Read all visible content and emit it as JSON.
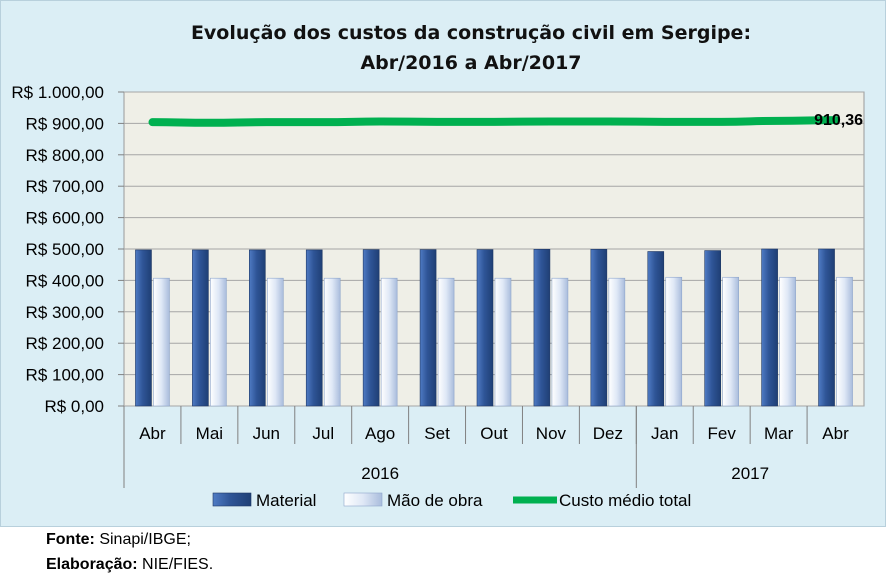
{
  "chart_data": {
    "type": "bar",
    "title_line1": "Evolução dos custos da construção civil em Sergipe:",
    "title_line2": "Abr/2016 a Abr/2017",
    "categories": [
      "Abr",
      "Mai",
      "Jun",
      "Jul",
      "Ago",
      "Set",
      "Out",
      "Nov",
      "Dez",
      "Jan",
      "Fev",
      "Mar",
      "Abr"
    ],
    "groups": [
      {
        "label": "2016",
        "count": 9
      },
      {
        "label": "2017",
        "count": 4
      }
    ],
    "y_ticks": [
      "R$ 0,00",
      "R$ 100,00",
      "R$ 200,00",
      "R$ 300,00",
      "R$ 400,00",
      "R$ 500,00",
      "R$ 600,00",
      "R$ 700,00",
      "R$ 800,00",
      "R$ 900,00",
      "R$ 1.000,00"
    ],
    "ylim": [
      0,
      1000
    ],
    "grid": true,
    "legend_position": "bottom",
    "series": [
      {
        "name": "Material",
        "type": "bar",
        "color": "#2f5597",
        "values": [
          497,
          497,
          497,
          497,
          498,
          498,
          498,
          499,
          499,
          492,
          495,
          500,
          500
        ]
      },
      {
        "name": "Mão de obra",
        "type": "bar",
        "color": "#c9d8ef",
        "values": [
          407,
          407,
          407,
          407,
          407,
          407,
          407,
          407,
          407,
          410,
          410,
          410,
          410
        ]
      },
      {
        "name": "Custo médio total",
        "type": "line",
        "color": "#00b050",
        "values": [
          904,
          902,
          904,
          904,
          906,
          905,
          905,
          906,
          906,
          905,
          905,
          908,
          910.36
        ]
      }
    ],
    "data_label": "910,36"
  },
  "source": {
    "fonte_label": "Fonte:",
    "fonte_value": "Sinapi/IBGE;",
    "elaboracao_label": "Elaboração:",
    "elaboracao_value": "NIE/FIES."
  }
}
